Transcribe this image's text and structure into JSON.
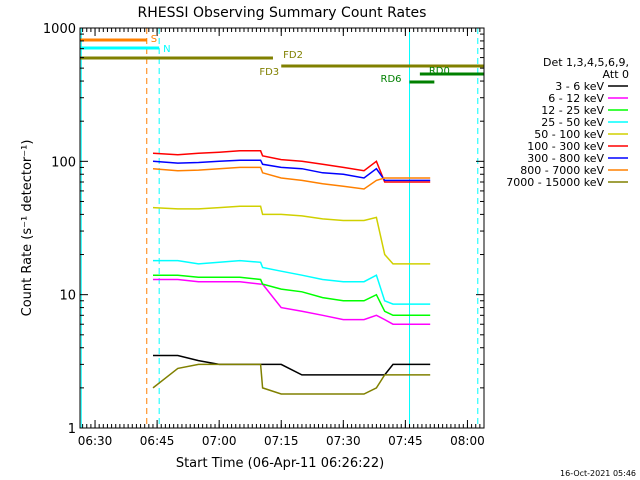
{
  "chart_data": {
    "type": "line",
    "title": "RHESSI Observing Summary Count Rates",
    "xlabel": "Start Time (06-Apr-11 06:26:22)",
    "ylabel": "Count Rate (s⁻¹ detector⁻¹)",
    "yscale": "log",
    "ylim": [
      1,
      1000
    ],
    "xlim": [
      "06:26:22",
      "08:04:00"
    ],
    "x_ticks": [
      "06:30",
      "06:45",
      "07:00",
      "07:15",
      "07:30",
      "07:45",
      "08:00"
    ],
    "y_ticks": [
      "1",
      "10",
      "100",
      "1000"
    ],
    "legend_header": [
      "Det 1,3,4,5,6,9,",
      "Att 0"
    ],
    "legend_position": "right",
    "footer": "16-Oct-2021 05:46",
    "flags": [
      {
        "label": "S",
        "color": "#ff8000",
        "start": "06:26:22",
        "end": "06:42:30"
      },
      {
        "label": "N",
        "color": "#00ffff",
        "start": "06:26:22",
        "end": "06:45:30"
      },
      {
        "label": "FD2",
        "color": "#808000",
        "start": "06:26:22",
        "end": "07:13:00"
      },
      {
        "label": "FD3",
        "color": "#808000",
        "start": "07:15:00",
        "end": "08:04:00"
      },
      {
        "label": "RD0",
        "color": "#008000",
        "start": "07:48:30",
        "end": "08:04:00"
      },
      {
        "label": "RD6",
        "color": "#008000",
        "start": "07:46:00",
        "end": "07:52:00"
      }
    ],
    "vlines": [
      {
        "time": "06:26:40",
        "color": "#00ffff",
        "style": "solid"
      },
      {
        "time": "06:42:30",
        "color": "#ff8000",
        "style": "dashed"
      },
      {
        "time": "06:45:30",
        "color": "#00ffff",
        "style": "dashed"
      },
      {
        "time": "07:46:00",
        "color": "#00ffff",
        "style": "solid"
      },
      {
        "time": "08:02:30",
        "color": "#00ffff",
        "style": "dashed"
      }
    ],
    "x_times": [
      "06:44:00",
      "06:50:00",
      "06:55:00",
      "07:00:00",
      "07:05:00",
      "07:10:00",
      "07:10:30",
      "07:15:00",
      "07:20:00",
      "07:25:00",
      "07:30:00",
      "07:35:00",
      "07:38:00",
      "07:40:00",
      "07:42:00",
      "07:45:00",
      "07:48:00",
      "07:51:00"
    ],
    "series": [
      {
        "name": "3 - 6 keV",
        "color": "#000000",
        "values": [
          3.5,
          3.5,
          3.2,
          3.0,
          3.0,
          3.0,
          3.0,
          3.0,
          2.5,
          2.5,
          2.5,
          2.5,
          2.5,
          2.5,
          3.0,
          3.0,
          3.0,
          3.0
        ]
      },
      {
        "name": "6 - 12 keV",
        "color": "#ff00ff",
        "values": [
          13,
          13,
          12.5,
          12.5,
          12.5,
          12,
          12,
          8,
          7.5,
          7.0,
          6.5,
          6.5,
          7.0,
          6.5,
          6.0,
          6.0,
          6.0,
          6.0
        ]
      },
      {
        "name": "12 - 25 keV",
        "color": "#00ff00",
        "values": [
          14,
          14,
          13.5,
          13.5,
          13.5,
          13,
          12,
          11,
          10.5,
          9.5,
          9.0,
          9.0,
          10,
          7.5,
          7.0,
          7.0,
          7.0,
          7.0
        ]
      },
      {
        "name": "25 - 50 keV",
        "color": "#00ffff",
        "values": [
          18,
          18,
          17,
          17.5,
          18,
          17.5,
          16,
          15,
          14,
          13,
          12.5,
          12.5,
          14,
          9,
          8.5,
          8.5,
          8.5,
          8.5
        ]
      },
      {
        "name": "50 - 100 keV",
        "color": "#d0d000",
        "values": [
          45,
          44,
          44,
          45,
          46,
          46,
          40,
          40,
          39,
          37,
          36,
          36,
          38,
          20,
          17,
          17,
          17,
          17
        ]
      },
      {
        "name": "100 - 300 keV",
        "color": "#ff0000",
        "values": [
          115,
          112,
          115,
          117,
          120,
          120,
          110,
          103,
          100,
          95,
          90,
          85,
          100,
          70,
          70,
          70,
          70,
          70
        ]
      },
      {
        "name": "300 - 800 keV",
        "color": "#0000ff",
        "values": [
          100,
          97,
          98,
          100,
          102,
          102,
          95,
          90,
          88,
          82,
          80,
          75,
          88,
          72,
          72,
          72,
          72,
          72
        ]
      },
      {
        "name": "800 - 7000 keV",
        "color": "#ff8000",
        "values": [
          88,
          85,
          86,
          88,
          90,
          90,
          82,
          75,
          72,
          68,
          65,
          62,
          72,
          75,
          75,
          75,
          75,
          75
        ]
      },
      {
        "name": "7000 - 15000 keV",
        "color": "#808000",
        "values": [
          2.0,
          2.8,
          3.0,
          3.0,
          3.0,
          3.0,
          2.0,
          1.8,
          1.8,
          1.8,
          1.8,
          1.8,
          2.0,
          2.5,
          2.5,
          2.5,
          2.5,
          2.5
        ]
      }
    ]
  }
}
